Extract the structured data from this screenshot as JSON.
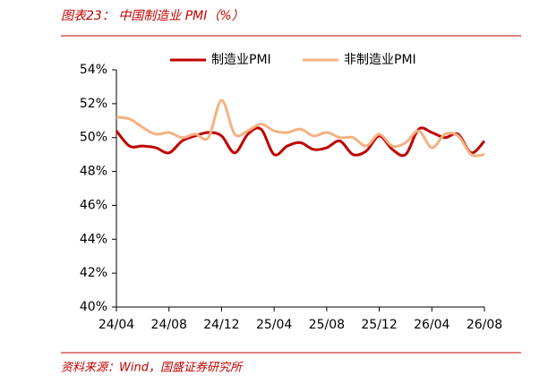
{
  "chart_data": {
    "type": "line",
    "title": "图表23：  中国制造业 PMI（%）",
    "source": "资料来源：Wind，国盛证券研究所",
    "categories": [
      "24/04",
      null,
      null,
      null,
      "24/08",
      null,
      null,
      null,
      "24/12",
      null,
      null,
      null,
      "25/04",
      null,
      null,
      null,
      "25/08",
      null,
      null,
      null,
      "25/12",
      null,
      null,
      null,
      "26/04",
      null,
      null,
      null,
      "26/08"
    ],
    "series": [
      {
        "name": "制造业PMI",
        "color": "#c00000",
        "values": [
          50.4,
          49.5,
          49.5,
          49.4,
          49.1,
          49.8,
          50.1,
          50.3,
          50.1,
          49.1,
          50.2,
          50.5,
          49.0,
          49.5,
          49.7,
          49.3,
          49.4,
          49.8,
          49.0,
          49.2,
          50.1,
          49.3,
          49.0,
          50.5,
          50.3,
          50.0,
          50.2,
          49.1,
          49.8
        ]
      },
      {
        "name": "非制造业PMI",
        "color": "#f4b183",
        "values": [
          51.2,
          51.1,
          50.6,
          50.2,
          50.3,
          50.0,
          50.2,
          50.0,
          52.2,
          50.2,
          50.4,
          50.8,
          50.4,
          50.3,
          50.5,
          50.1,
          50.3,
          50.0,
          50.0,
          49.5,
          50.2,
          49.5,
          49.7,
          50.4,
          49.4,
          50.2,
          50.1,
          49.0,
          49.0
        ]
      }
    ],
    "ylim": [
      40,
      54
    ],
    "yticks": [
      {
        "value": 40,
        "label": "40%"
      },
      {
        "value": 42,
        "label": "42%"
      },
      {
        "value": 44,
        "label": "44%"
      },
      {
        "value": 46,
        "label": "46%"
      },
      {
        "value": 48,
        "label": "48%"
      },
      {
        "value": 50,
        "label": "50%"
      },
      {
        "value": 52,
        "label": "52%"
      },
      {
        "value": 54,
        "label": "54%"
      }
    ],
    "legend": "top"
  }
}
